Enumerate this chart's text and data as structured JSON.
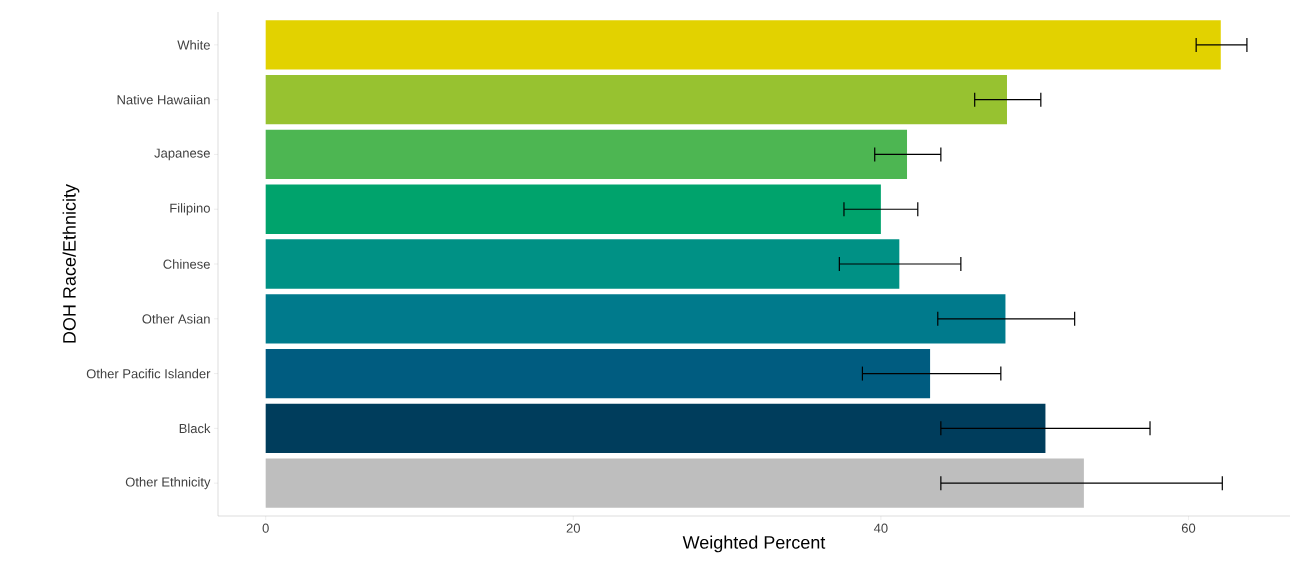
{
  "chart_data": {
    "type": "bar",
    "orientation": "horizontal",
    "xlabel": "Weighted Percent",
    "ylabel": "DOH Race/Ethnicity",
    "categories": [
      "White",
      "Native Hawaiian",
      "Japanese",
      "Filipino",
      "Chinese",
      "Other Asian",
      "Other Pacific Islander",
      "Black",
      "Other Ethnicity"
    ],
    "values": [
      62.1,
      48.2,
      41.7,
      40.0,
      41.2,
      48.1,
      43.2,
      50.7,
      53.2
    ],
    "errors": [
      [
        60.5,
        63.8
      ],
      [
        46.1,
        50.4
      ],
      [
        39.6,
        43.9
      ],
      [
        37.6,
        42.4
      ],
      [
        37.3,
        45.2
      ],
      [
        43.7,
        52.6
      ],
      [
        38.8,
        47.8
      ],
      [
        43.9,
        57.5
      ],
      [
        43.9,
        62.2
      ]
    ],
    "colors": [
      "#e2d200",
      "#97c230",
      "#4db652",
      "#00a36c",
      "#009185",
      "#007a8c",
      "#005c80",
      "#003d5c",
      "#bebebe"
    ],
    "xlim": [
      -3.1,
      66.6
    ],
    "xticks": [
      0,
      20,
      40,
      60
    ]
  }
}
